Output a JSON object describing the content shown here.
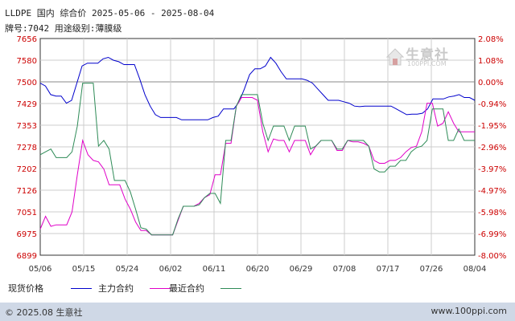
{
  "header": {
    "title": "LLDPE 国内 综合价 2025-05-06 - 2025-08-04",
    "subtitle": "牌号:7042 用途级别:薄膜级"
  },
  "watermark": {
    "name": "生意社",
    "url": "100PPI.COM"
  },
  "legend": {
    "spot": "现货价格",
    "main": "主力合约",
    "recent": "最近合约"
  },
  "footer": {
    "copyright": "© 2025.08 生意社",
    "site": "www.100ppi.com"
  },
  "colors": {
    "spot": "#0000cc",
    "main": "#e000c8",
    "recent": "#2e8b57",
    "grid": "#cccccc",
    "axis": "#333333",
    "zero": "#888888"
  },
  "chart_data": {
    "type": "line",
    "title": "LLDPE 国内 综合价 2025-05-06 - 2025-08-04",
    "xlabel": "",
    "ylabel": "",
    "x_ticks": [
      "05/06",
      "05/15",
      "05/24",
      "06/02",
      "06/11",
      "06/20",
      "06/29",
      "07/08",
      "07/17",
      "07/26",
      "08/04"
    ],
    "y_ticks": [
      "7656",
      "7580",
      "7500",
      "7429",
      "7353",
      "7278",
      "7202",
      "7126",
      "7051",
      "6975",
      "6899"
    ],
    "y_right_ticks": [
      "2.08%",
      "1.08%",
      "0.00%",
      "-0.94%",
      "-1.95%",
      "-2.96%",
      "-3.97%",
      "-4.97%",
      "-5.98%",
      "-6.99%",
      "-8.00%"
    ],
    "ylim": [
      6899,
      7656
    ],
    "grid": true,
    "legend_position": "bottom",
    "series": [
      {
        "name": "现货价格",
        "key": "spot",
        "values": [
          7500,
          7490,
          7460,
          7455,
          7455,
          7430,
          7440,
          7500,
          7560,
          7570,
          7570,
          7570,
          7585,
          7590,
          7580,
          7575,
          7565,
          7565,
          7565,
          7515,
          7460,
          7420,
          7390,
          7380,
          7380,
          7380,
          7380,
          7372,
          7372,
          7372,
          7372,
          7372,
          7372,
          7380,
          7385,
          7410,
          7410,
          7410,
          7435,
          7480,
          7530,
          7550,
          7550,
          7560,
          7590,
          7570,
          7540,
          7515,
          7515,
          7515,
          7515,
          7510,
          7500,
          7480,
          7460,
          7440,
          7440,
          7440,
          7435,
          7430,
          7420,
          7418,
          7420,
          7420,
          7420,
          7420,
          7420,
          7420,
          7410,
          7400,
          7390,
          7392,
          7392,
          7395,
          7410,
          7445,
          7445,
          7445,
          7452,
          7455,
          7460,
          7450,
          7450,
          7440
        ]
      },
      {
        "name": "主力合约",
        "key": "main",
        "values": [
          6990,
          7035,
          7000,
          7005,
          7005,
          7005,
          7050,
          7180,
          7300,
          7250,
          7230,
          7225,
          7200,
          7145,
          7145,
          7145,
          7095,
          7060,
          7015,
          6985,
          6985,
          6970,
          6970,
          6970,
          6970,
          6970,
          7020,
          7070,
          7070,
          7070,
          7080,
          7100,
          7110,
          7180,
          7180,
          7290,
          7290,
          7420,
          7450,
          7450,
          7450,
          7440,
          7330,
          7260,
          7305,
          7300,
          7300,
          7260,
          7300,
          7300,
          7300,
          7250,
          7280,
          7300,
          7300,
          7300,
          7265,
          7265,
          7300,
          7295,
          7295,
          7290,
          7280,
          7230,
          7220,
          7220,
          7230,
          7230,
          7240,
          7260,
          7275,
          7280,
          7330,
          7430,
          7430,
          7350,
          7360,
          7400,
          7360,
          7330,
          7330,
          7330,
          7330
        ]
      },
      {
        "name": "最近合约",
        "key": "recent",
        "values": [
          7250,
          7260,
          7270,
          7240,
          7240,
          7240,
          7260,
          7350,
          7500,
          7500,
          7500,
          7280,
          7300,
          7270,
          7160,
          7160,
          7160,
          7120,
          7060,
          6995,
          6990,
          6970,
          6970,
          6970,
          6970,
          6970,
          7025,
          7070,
          7070,
          7070,
          7075,
          7100,
          7115,
          7115,
          7080,
          7300,
          7300,
          7420,
          7460,
          7460,
          7460,
          7460,
          7360,
          7300,
          7350,
          7350,
          7350,
          7300,
          7350,
          7350,
          7350,
          7270,
          7280,
          7300,
          7300,
          7300,
          7270,
          7270,
          7300,
          7300,
          7300,
          7300,
          7280,
          7200,
          7190,
          7190,
          7210,
          7210,
          7230,
          7230,
          7260,
          7275,
          7280,
          7300,
          7410,
          7410,
          7410,
          7300,
          7300,
          7340,
          7300,
          7300,
          7300
        ]
      }
    ]
  }
}
